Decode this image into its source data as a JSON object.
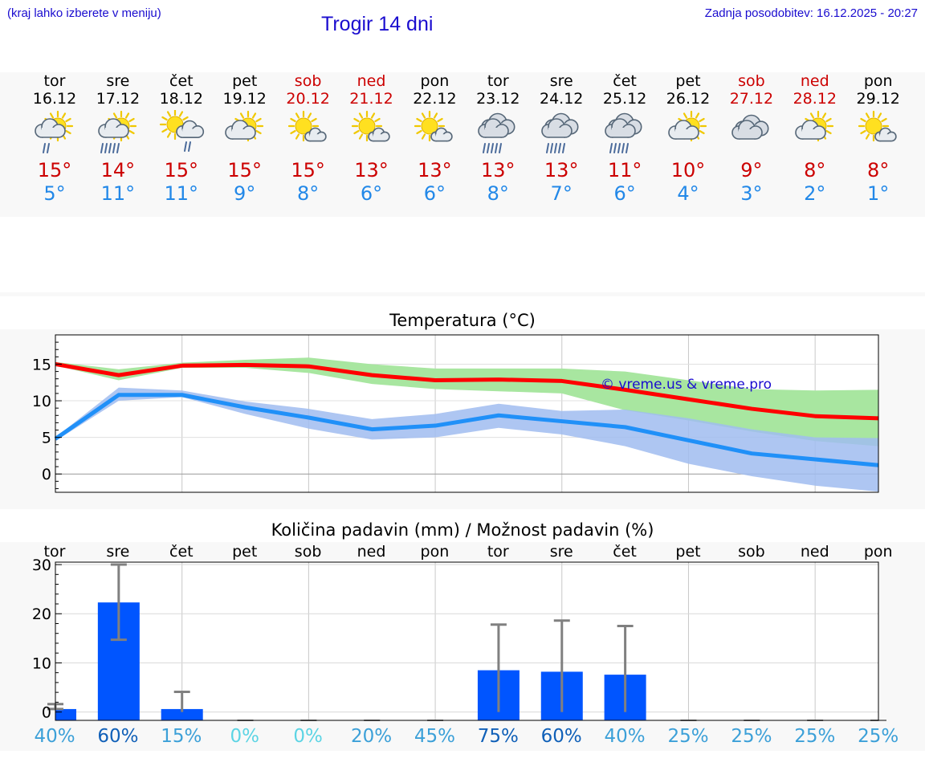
{
  "header": {
    "left_note": "(kraj lahko izberete v meniju)",
    "title": "Trogir 14 dni",
    "updated": "Zadnja posodobitev: 16.12.2025 - 20:27"
  },
  "days": [
    {
      "name": "tor",
      "date": "16.12",
      "weekend": false,
      "icon": "partly-sunny-rain-icon",
      "hi": "15°",
      "lo": "5°"
    },
    {
      "name": "sre",
      "date": "17.12",
      "weekend": false,
      "icon": "partly-sunny-heavy-rain-icon",
      "hi": "14°",
      "lo": "11°"
    },
    {
      "name": "čet",
      "date": "18.12",
      "weekend": false,
      "icon": "sunny-cloud-rain-icon",
      "hi": "15°",
      "lo": "11°"
    },
    {
      "name": "pet",
      "date": "19.12",
      "weekend": false,
      "icon": "partly-sunny-icon",
      "hi": "15°",
      "lo": "9°"
    },
    {
      "name": "sob",
      "date": "20.12",
      "weekend": true,
      "icon": "sun-small-cloud-icon",
      "hi": "15°",
      "lo": "8°"
    },
    {
      "name": "ned",
      "date": "21.12",
      "weekend": true,
      "icon": "sun-small-cloud-icon",
      "hi": "13°",
      "lo": "6°"
    },
    {
      "name": "pon",
      "date": "22.12",
      "weekend": false,
      "icon": "sun-small-cloud-icon",
      "hi": "13°",
      "lo": "6°"
    },
    {
      "name": "tor",
      "date": "23.12",
      "weekend": false,
      "icon": "cloud-rain-icon",
      "hi": "13°",
      "lo": "8°"
    },
    {
      "name": "sre",
      "date": "24.12",
      "weekend": false,
      "icon": "cloud-rain-icon",
      "hi": "13°",
      "lo": "7°"
    },
    {
      "name": "čet",
      "date": "25.12",
      "weekend": false,
      "icon": "cloud-rain-icon",
      "hi": "11°",
      "lo": "6°"
    },
    {
      "name": "pet",
      "date": "26.12",
      "weekend": false,
      "icon": "partly-sunny-icon",
      "hi": "10°",
      "lo": "4°"
    },
    {
      "name": "sob",
      "date": "27.12",
      "weekend": true,
      "icon": "cloudy-icon",
      "hi": "9°",
      "lo": "3°"
    },
    {
      "name": "ned",
      "date": "28.12",
      "weekend": true,
      "icon": "partly-sunny-icon",
      "hi": "8°",
      "lo": "2°"
    },
    {
      "name": "pon",
      "date": "29.12",
      "weekend": false,
      "icon": "sun-small-cloud-icon",
      "hi": "8°",
      "lo": "1°"
    }
  ],
  "colors": {
    "weekday": "#000000",
    "weekend": "#cc0000",
    "hi": "#cc0000",
    "lo": "#2288e8",
    "title": "#1a0ccf",
    "bar": "#0055ff",
    "errbar": "#808080",
    "max_line": "#ff0000",
    "max_band": "#a8e6a0",
    "min_line": "#2090f8",
    "min_band": "#a0bcf0"
  },
  "chart_data": [
    {
      "type": "line",
      "title": "Temperatura (°C)",
      "watermark": "© vreme.us & vreme.pro",
      "ylim": [
        -2.5,
        19
      ],
      "yticks": [
        0,
        5,
        10,
        15
      ],
      "x": [
        0,
        1,
        2,
        3,
        4,
        5,
        6,
        7,
        8,
        9,
        10,
        11,
        12,
        13
      ],
      "series": [
        {
          "name": "max",
          "values": [
            15.0,
            13.5,
            14.8,
            14.9,
            14.7,
            13.5,
            12.8,
            12.9,
            12.7,
            11.5,
            10.2,
            8.9,
            7.9,
            7.6
          ],
          "band_low": [
            14.8,
            12.8,
            14.5,
            14.5,
            13.8,
            12.3,
            11.6,
            11.3,
            11.0,
            8.7,
            7.3,
            5.8,
            4.5,
            3.8
          ],
          "band_high": [
            15.3,
            14.3,
            15.2,
            15.6,
            15.9,
            15.0,
            14.4,
            14.4,
            14.4,
            14.0,
            12.8,
            11.6,
            11.4,
            11.5
          ]
        },
        {
          "name": "min",
          "values": [
            4.8,
            10.8,
            10.8,
            9.1,
            7.7,
            6.1,
            6.6,
            8.0,
            7.2,
            6.4,
            4.6,
            2.8,
            2.0,
            1.2
          ],
          "band_low": [
            4.5,
            10.0,
            10.5,
            8.2,
            6.2,
            4.7,
            5.0,
            6.3,
            5.4,
            3.8,
            1.4,
            -0.3,
            -1.6,
            -2.4
          ],
          "band_high": [
            5.0,
            11.8,
            11.4,
            9.9,
            8.9,
            7.5,
            8.2,
            9.6,
            8.6,
            8.8,
            7.6,
            6.1,
            5.0,
            4.9
          ]
        }
      ]
    },
    {
      "type": "bar",
      "title": "Količina padavin (mm) / Možnost padavin (%)",
      "ylim": [
        -1.7,
        30.5
      ],
      "yticks": [
        0,
        10,
        20,
        30
      ],
      "categories": [
        "tor",
        "sre",
        "čet",
        "pet",
        "sob",
        "ned",
        "pon",
        "tor",
        "sre",
        "čet",
        "pet",
        "sob",
        "ned",
        "pon"
      ],
      "values": [
        0.6,
        22.3,
        0.6,
        0,
        0,
        0,
        0,
        8.5,
        8.2,
        7.6,
        0,
        0,
        0,
        0
      ],
      "err_low": [
        0.6,
        14.7,
        0.0,
        0,
        0,
        0,
        0,
        0,
        0,
        0,
        0,
        0,
        0,
        0
      ],
      "err_high": [
        1.6,
        30.0,
        4.1,
        0,
        0,
        0,
        0,
        17.8,
        18.6,
        17.5,
        0,
        0,
        0,
        0
      ],
      "probability": [
        "40%",
        "60%",
        "15%",
        "0%",
        "0%",
        "20%",
        "45%",
        "75%",
        "60%",
        "40%",
        "25%",
        "25%",
        "25%",
        "25%"
      ],
      "probability_colors": [
        "#3ca0d8",
        "#1060b8",
        "#3ca0d8",
        "#5cd4e4",
        "#5cd4e4",
        "#3ca0d8",
        "#3ca0d8",
        "#1060b8",
        "#1060b8",
        "#3ca0d8",
        "#3ca0d8",
        "#3ca0d8",
        "#3ca0d8",
        "#3ca0d8"
      ]
    }
  ]
}
